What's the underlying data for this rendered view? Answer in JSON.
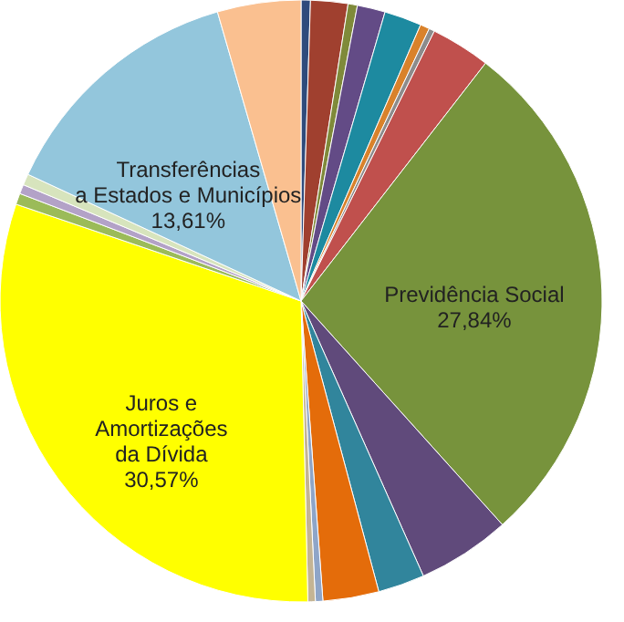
{
  "chart_data": {
    "type": "pie",
    "categories": [
      null,
      null,
      null,
      null,
      null,
      null,
      null,
      null,
      "Previdência Social",
      null,
      null,
      null,
      null,
      null,
      "Juros e\nAmortizações\nda Dívida",
      null,
      null,
      null,
      "Transferências\na Estados e Municípios",
      null
    ],
    "values": [
      0.5,
      2.0,
      0.5,
      1.5,
      2.0,
      0.5,
      0.3,
      3.2,
      27.84,
      5.0,
      2.5,
      3.0,
      0.4,
      0.4,
      30.57,
      0.6,
      0.5,
      0.6,
      13.61,
      4.48
    ],
    "value_labels": [
      null,
      null,
      null,
      null,
      null,
      null,
      null,
      null,
      "27,84%",
      null,
      null,
      null,
      null,
      null,
      "30,57%",
      null,
      null,
      null,
      "13,61%",
      null
    ],
    "colors": [
      "#2f4b7c",
      "#a0402f",
      "#7f8a3a",
      "#634b86",
      "#1d8aa0",
      "#d9822b",
      "#8c8c8c",
      "#c0504d",
      "#77933c",
      "#604a7b",
      "#31859c",
      "#e46c0a",
      "#8ea5c8",
      "#c4b494",
      "#ffff00",
      "#9bbb59",
      "#b3a2c7",
      "#d7e4bd",
      "#93c6dc",
      "#fac090"
    ],
    "legend": false
  }
}
